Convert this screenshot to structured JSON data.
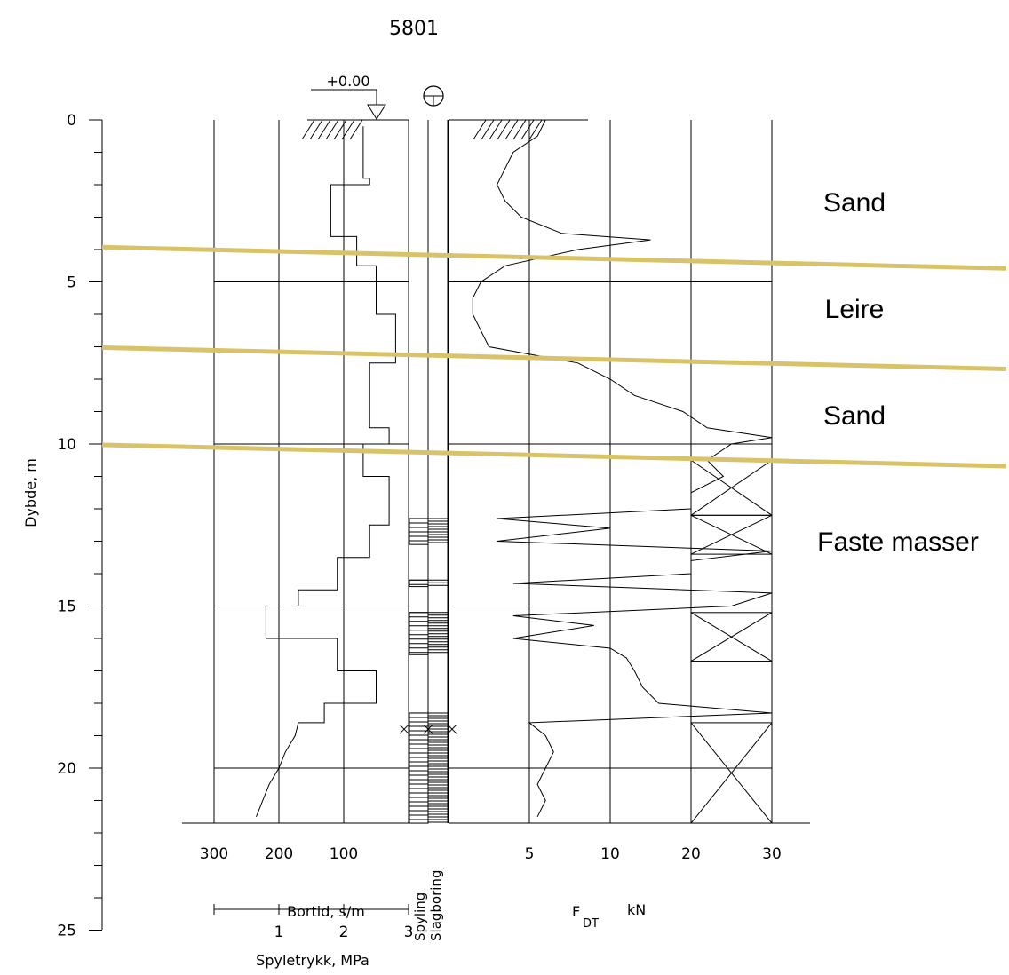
{
  "chart_data": {
    "type": "line",
    "title": "5801",
    "surface_level_label": "+0.00",
    "y_axis": {
      "label": "Dybde, m",
      "range": [
        0,
        25
      ],
      "ticks": [
        "0",
        "5",
        "10",
        "15",
        "20",
        "25"
      ]
    },
    "bortid_axis": {
      "label": "Bortid, s/m",
      "ticks": [
        "300",
        "200",
        "100"
      ]
    },
    "spyletrykk_axis": {
      "label": "Spyletrykk, MPa",
      "ticks": [
        "1",
        "2",
        "3"
      ]
    },
    "method_columns": [
      "Spyling",
      "Slagboring"
    ],
    "fdt_axis": {
      "label_main": "F",
      "label_sub": "DT",
      "unit": "kN",
      "ticks": [
        "5",
        "10",
        "20",
        "30"
      ],
      "scale": "piecewise"
    },
    "layers": [
      {
        "name": "Sand",
        "top_m": 0.0,
        "bottom_m": 4.2
      },
      {
        "name": "Leire",
        "top_m": 4.2,
        "bottom_m": 7.3
      },
      {
        "name": "Sand",
        "top_m": 7.3,
        "bottom_m": 10.3
      },
      {
        "name": "Faste masser",
        "top_m": 10.3,
        "bottom_m": 21.7
      }
    ],
    "layer_line_color": "#d9c36a",
    "fdt_profile": [
      {
        "depth": 0.0,
        "kN": 6.0
      },
      {
        "depth": 0.5,
        "kN": 5.5
      },
      {
        "depth": 1.0,
        "kN": 4.0
      },
      {
        "depth": 1.5,
        "kN": 3.5
      },
      {
        "depth": 2.0,
        "kN": 3.0
      },
      {
        "depth": 2.5,
        "kN": 3.5
      },
      {
        "depth": 3.0,
        "kN": 4.5
      },
      {
        "depth": 3.5,
        "kN": 7.0
      },
      {
        "depth": 3.7,
        "kN": 15.0
      },
      {
        "depth": 4.0,
        "kN": 8.0
      },
      {
        "depth": 4.5,
        "kN": 3.5
      },
      {
        "depth": 5.0,
        "kN": 2.0
      },
      {
        "depth": 5.5,
        "kN": 1.5
      },
      {
        "depth": 6.0,
        "kN": 1.5
      },
      {
        "depth": 6.5,
        "kN": 2.0
      },
      {
        "depth": 7.0,
        "kN": 2.5
      },
      {
        "depth": 7.5,
        "kN": 8.0
      },
      {
        "depth": 8.0,
        "kN": 10.0
      },
      {
        "depth": 8.5,
        "kN": 13.0
      },
      {
        "depth": 9.0,
        "kN": 19.0
      },
      {
        "depth": 9.5,
        "kN": 22.0
      },
      {
        "depth": 9.8,
        "kN": 30.0
      },
      {
        "depth": 10.0,
        "kN": 25.0
      },
      {
        "depth": 10.5,
        "kN": 22.0
      },
      {
        "depth": 11.0,
        "kN": 24.0
      },
      {
        "depth": 11.5,
        "kN": 20.0
      },
      {
        "depth": 12.0,
        "kN": 20.0
      },
      {
        "depth": 12.3,
        "kN": 3.0
      },
      {
        "depth": 12.6,
        "kN": 10.0
      },
      {
        "depth": 13.0,
        "kN": 3.0
      },
      {
        "depth": 13.3,
        "kN": 30.0
      },
      {
        "depth": 13.6,
        "kN": 20.0
      },
      {
        "depth": 14.0,
        "kN": 20.0
      },
      {
        "depth": 14.3,
        "kN": 4.0
      },
      {
        "depth": 14.6,
        "kN": 30.0
      },
      {
        "depth": 15.0,
        "kN": 25.0
      },
      {
        "depth": 15.3,
        "kN": 4.0
      },
      {
        "depth": 15.6,
        "kN": 9.0
      },
      {
        "depth": 16.0,
        "kN": 4.0
      },
      {
        "depth": 16.3,
        "kN": 10.0
      },
      {
        "depth": 16.6,
        "kN": 12.0
      },
      {
        "depth": 17.0,
        "kN": 13.0
      },
      {
        "depth": 17.5,
        "kN": 14.0
      },
      {
        "depth": 18.0,
        "kN": 16.0
      },
      {
        "depth": 18.3,
        "kN": 30.0
      },
      {
        "depth": 18.6,
        "kN": 5.0
      },
      {
        "depth": 19.0,
        "kN": 6.0
      },
      {
        "depth": 19.5,
        "kN": 6.5
      },
      {
        "depth": 20.0,
        "kN": 6.0
      },
      {
        "depth": 20.5,
        "kN": 5.5
      },
      {
        "depth": 21.0,
        "kN": 6.0
      },
      {
        "depth": 21.5,
        "kN": 5.5
      }
    ],
    "bortid_profile": [
      {
        "depth": 18.6,
        "s_per_m": 170
      },
      {
        "depth": 19.0,
        "s_per_m": 175
      },
      {
        "depth": 19.5,
        "s_per_m": 190
      },
      {
        "depth": 20.0,
        "s_per_m": 200
      },
      {
        "depth": 20.5,
        "s_per_m": 215
      },
      {
        "depth": 21.0,
        "s_per_m": 225
      },
      {
        "depth": 21.5,
        "s_per_m": 235
      }
    ],
    "spyletrykk_profile": [
      {
        "depth": 0.2,
        "MPa": 2.3
      },
      {
        "depth": 1.8,
        "MPa": 2.4
      },
      {
        "depth": 2.0,
        "MPa": 1.8
      },
      {
        "depth": 3.6,
        "MPa": 2.2
      },
      {
        "depth": 4.5,
        "MPa": 2.5
      },
      {
        "depth": 6.0,
        "MPa": 2.8
      },
      {
        "depth": 7.5,
        "MPa": 2.4
      },
      {
        "depth": 9.5,
        "MPa": 2.7
      },
      {
        "depth": 10.0,
        "MPa": 2.3
      },
      {
        "depth": 11.0,
        "MPa": 2.7
      },
      {
        "depth": 12.5,
        "MPa": 2.4
      },
      {
        "depth": 13.5,
        "MPa": 1.9
      },
      {
        "depth": 14.5,
        "MPa": 1.3
      },
      {
        "depth": 15.0,
        "MPa": 0.8
      },
      {
        "depth": 16.0,
        "MPa": 1.9
      },
      {
        "depth": 17.0,
        "MPa": 2.5
      },
      {
        "depth": 18.0,
        "MPa": 1.7
      },
      {
        "depth": 18.6,
        "MPa": 1.3
      }
    ]
  }
}
